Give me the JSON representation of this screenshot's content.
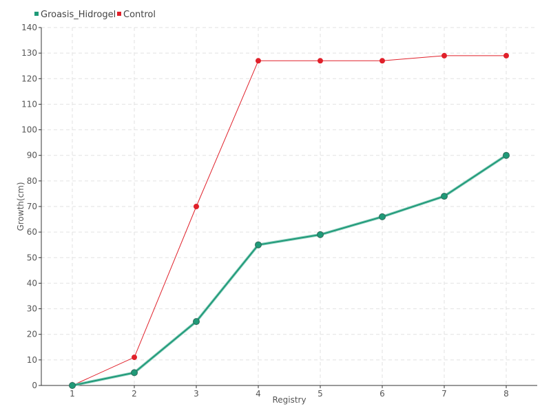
{
  "chart_data": {
    "type": "line",
    "x": [
      1,
      2,
      3,
      4,
      5,
      6,
      7,
      8
    ],
    "xlabel": "Registry",
    "ylabel": "Growth(cm)",
    "ylim": [
      0,
      140
    ],
    "yticks": [
      0,
      10,
      20,
      30,
      40,
      50,
      60,
      70,
      80,
      90,
      100,
      110,
      120,
      130,
      140
    ],
    "grid": true,
    "legend_position": "top-left",
    "series": [
      {
        "name": "Groasis_Hidrogel",
        "color": "#1f9a78",
        "values": [
          0,
          5,
          25,
          55,
          59,
          66,
          74,
          90
        ]
      },
      {
        "name": "Control",
        "color": "#e0202a",
        "values": [
          0,
          11,
          70,
          127,
          127,
          127,
          129,
          129
        ]
      }
    ]
  }
}
